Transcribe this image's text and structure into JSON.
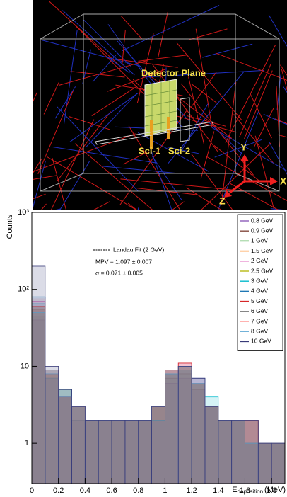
{
  "detector_view": {
    "plane_label": "Detector Plane",
    "sci1": "Sci-1",
    "sci2": "Sci-2",
    "axis_y": "Y",
    "axis_x": "X",
    "axis_z": "Z"
  },
  "chart_data": {
    "type": "histogram",
    "log_y": true,
    "y_label": "Counts",
    "x_label": {
      "main": "E",
      "sub": "deposition",
      "unit": "(MeV)"
    },
    "fit_legend": "Landau Fit (2 GeV)",
    "annotations": [
      "MPV = 1.097 ± 0.007",
      "σ = 0.071 ± 0.005"
    ],
    "xlim": [
      0,
      1.9
    ],
    "xticks": [
      0,
      0.2,
      0.4,
      0.6,
      0.8,
      1,
      1.2,
      1.4,
      1.6,
      1.8
    ],
    "ylim": [
      0.3,
      1000
    ],
    "yticks": [
      1,
      10,
      {
        "value": 100,
        "label": "10²"
      },
      {
        "value": 1000,
        "label": "10³"
      }
    ],
    "bins": [
      0,
      0.1,
      0.2,
      0.3,
      0.4,
      0.5,
      0.6,
      0.7,
      0.8,
      0.9,
      1,
      1.1,
      1.2,
      1.3,
      1.4,
      1.5,
      1.6,
      1.7,
      1.8,
      1.9
    ],
    "series": [
      {
        "name": "0.8 GeV",
        "color": "#9467bd",
        "values": [
          40,
          7,
          4,
          3,
          2,
          2,
          2,
          2,
          2,
          2,
          6,
          7,
          5,
          3,
          2,
          2,
          1,
          1,
          1
        ]
      },
      {
        "name": "0.9 GeV",
        "color": "#8c564b",
        "values": [
          45,
          8,
          4,
          2,
          2,
          2,
          2,
          2,
          2,
          3,
          7,
          8,
          5,
          3,
          2,
          2,
          1,
          1,
          1
        ]
      },
      {
        "name": "1 GeV",
        "color": "#2ca02c",
        "values": [
          60,
          9,
          5,
          3,
          2,
          2,
          2,
          2,
          2,
          3,
          8,
          9,
          6,
          3,
          2,
          2,
          2,
          1,
          1
        ]
      },
      {
        "name": "1.5 GeV",
        "color": "#ff7f0e",
        "values": [
          55,
          8,
          4,
          3,
          2,
          2,
          2,
          2,
          2,
          3,
          9,
          10,
          6,
          3,
          2,
          2,
          2,
          1,
          1
        ]
      },
      {
        "name": "2 GeV",
        "color": "#e377c2",
        "values": [
          70,
          9,
          4,
          3,
          2,
          2,
          2,
          2,
          2,
          3,
          9,
          11,
          7,
          3,
          2,
          2,
          2,
          1,
          1
        ]
      },
      {
        "name": "2.5 GeV",
        "color": "#bcbd22",
        "values": [
          50,
          8,
          4,
          3,
          2,
          2,
          2,
          2,
          2,
          3,
          8,
          10,
          6,
          3,
          2,
          2,
          1,
          1,
          1
        ]
      },
      {
        "name": "3 GeV",
        "color": "#17becf",
        "values": [
          65,
          7,
          4,
          3,
          2,
          2,
          2,
          2,
          2,
          2,
          9,
          9,
          6,
          4,
          2,
          2,
          1,
          1,
          1
        ]
      },
      {
        "name": "4 GeV",
        "color": "#1f77b4",
        "values": [
          80,
          9,
          5,
          3,
          2,
          2,
          2,
          2,
          2,
          3,
          8,
          10,
          7,
          3,
          2,
          2,
          2,
          1,
          1
        ]
      },
      {
        "name": "5 GeV",
        "color": "#d62728",
        "values": [
          60,
          8,
          4,
          3,
          2,
          2,
          2,
          2,
          2,
          3,
          9,
          11,
          6,
          3,
          2,
          2,
          2,
          1,
          1
        ]
      },
      {
        "name": "6 GeV",
        "color": "#7f7f7f",
        "values": [
          55,
          7,
          4,
          2,
          2,
          2,
          2,
          2,
          2,
          3,
          8,
          9,
          6,
          3,
          2,
          2,
          1,
          1,
          1
        ]
      },
      {
        "name": "7 GeV",
        "color": "#ff9896",
        "values": [
          75,
          9,
          4,
          3,
          2,
          2,
          2,
          2,
          2,
          3,
          9,
          10,
          6,
          3,
          2,
          2,
          2,
          1,
          1
        ]
      },
      {
        "name": "8 GeV",
        "color": "#6baed6",
        "values": [
          50,
          8,
          4,
          3,
          2,
          2,
          2,
          2,
          2,
          3,
          8,
          10,
          6,
          3,
          2,
          2,
          1,
          1,
          1
        ]
      },
      {
        "name": "10 GeV",
        "color": "#393b79",
        "values": [
          200,
          10,
          5,
          3,
          2,
          2,
          2,
          2,
          2,
          3,
          9,
          10,
          7,
          3,
          2,
          2,
          2,
          1,
          1
        ]
      }
    ]
  }
}
